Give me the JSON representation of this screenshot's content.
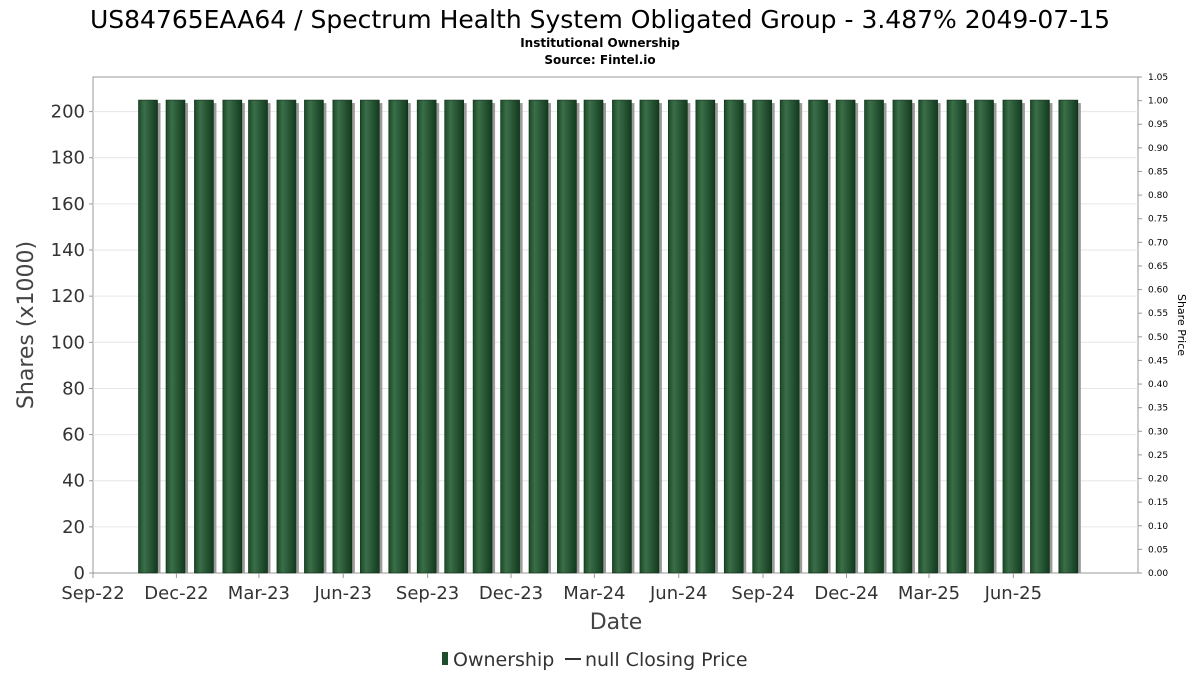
{
  "chart_data": {
    "type": "bar",
    "title": "US84765EAA64 / Spectrum Health System Obligated Group - 3.487% 2049-07-15",
    "subtitle": "Institutional Ownership",
    "source": "Source: Fintel.io",
    "xlabel": "Date",
    "ylabel": "Shares (x1000)",
    "y2label": "Share Price",
    "ylim": [
      0,
      215
    ],
    "y2lim": [
      0,
      1.05
    ],
    "y_ticks": [
      "0",
      "20",
      "40",
      "60",
      "80",
      "100",
      "120",
      "140",
      "160",
      "180",
      "200"
    ],
    "y2_ticks": [
      "0.00",
      "0.05",
      "0.10",
      "0.15",
      "0.20",
      "0.25",
      "0.30",
      "0.35",
      "0.40",
      "0.45",
      "0.50",
      "0.55",
      "0.60",
      "0.65",
      "0.70",
      "0.75",
      "0.80",
      "0.85",
      "0.90",
      "0.95",
      "1.00",
      "1.05"
    ],
    "x_ticks": [
      "Sep-22",
      "Dec-22",
      "Mar-23",
      "Jun-23",
      "Sep-23",
      "Dec-23",
      "Mar-24",
      "Jun-24",
      "Sep-24",
      "Dec-24",
      "Mar-25",
      "Jun-25"
    ],
    "x_range": [
      "2022-09-01",
      "2025-10-15"
    ],
    "grid": true,
    "legend": "bottom",
    "series": [
      {
        "name": "Ownership",
        "color": "#1e4d2b",
        "x": [
          "2022-10-31",
          "2022-11-30",
          "2022-12-31",
          "2023-01-31",
          "2023-02-28",
          "2023-03-31",
          "2023-04-30",
          "2023-05-31",
          "2023-06-30",
          "2023-07-31",
          "2023-08-31",
          "2023-09-30",
          "2023-10-31",
          "2023-11-30",
          "2023-12-31",
          "2024-01-31",
          "2024-02-29",
          "2024-03-31",
          "2024-04-30",
          "2024-05-31",
          "2024-06-30",
          "2024-07-31",
          "2024-08-31",
          "2024-09-30",
          "2024-10-31",
          "2024-11-30",
          "2024-12-31",
          "2025-01-31",
          "2025-02-28",
          "2025-03-31",
          "2025-04-30",
          "2025-05-31",
          "2025-06-30",
          "2025-07-31"
        ],
        "values": [
          205,
          205,
          205,
          205,
          205,
          205,
          205,
          205,
          205,
          205,
          205,
          205,
          205,
          205,
          205,
          205,
          205,
          205,
          205,
          205,
          205,
          205,
          205,
          205,
          205,
          205,
          205,
          205,
          205,
          205,
          205,
          205,
          205,
          205
        ]
      },
      {
        "name": "null Closing Price",
        "color": "#000000",
        "values": []
      }
    ]
  }
}
